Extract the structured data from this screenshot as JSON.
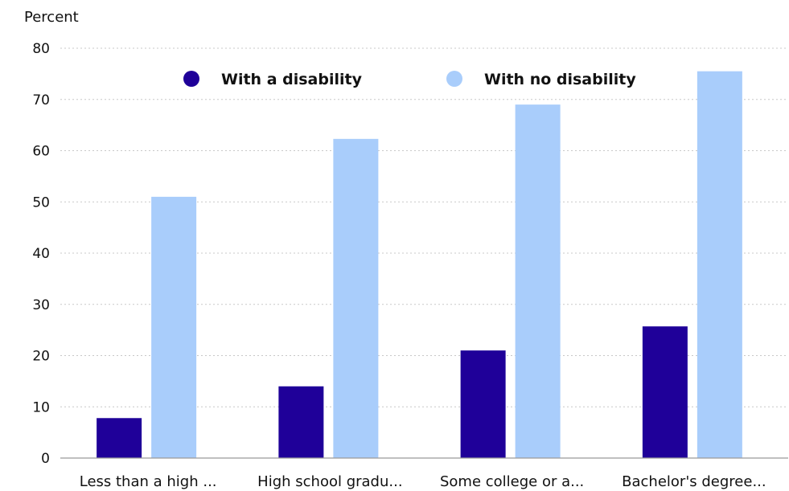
{
  "chart_data": {
    "type": "bar",
    "ylabel": "Percent",
    "xlabel": "",
    "ylim": [
      0,
      80
    ],
    "yticks": [
      "0",
      "10",
      "20",
      "30",
      "40",
      "50",
      "60",
      "70",
      "80"
    ],
    "grid": true,
    "legend_position": "top",
    "categories": [
      "Less than a high ...",
      "High school gradu...",
      "Some college or a...",
      "Bachelor's degree..."
    ],
    "series": [
      {
        "name": "With a disability",
        "values": [
          7.8,
          14,
          21,
          25.7
        ],
        "color": "#1f0099"
      },
      {
        "name": "With no disability",
        "values": [
          51,
          62.3,
          69,
          75.5
        ],
        "color": "#a9cdfb"
      }
    ]
  }
}
